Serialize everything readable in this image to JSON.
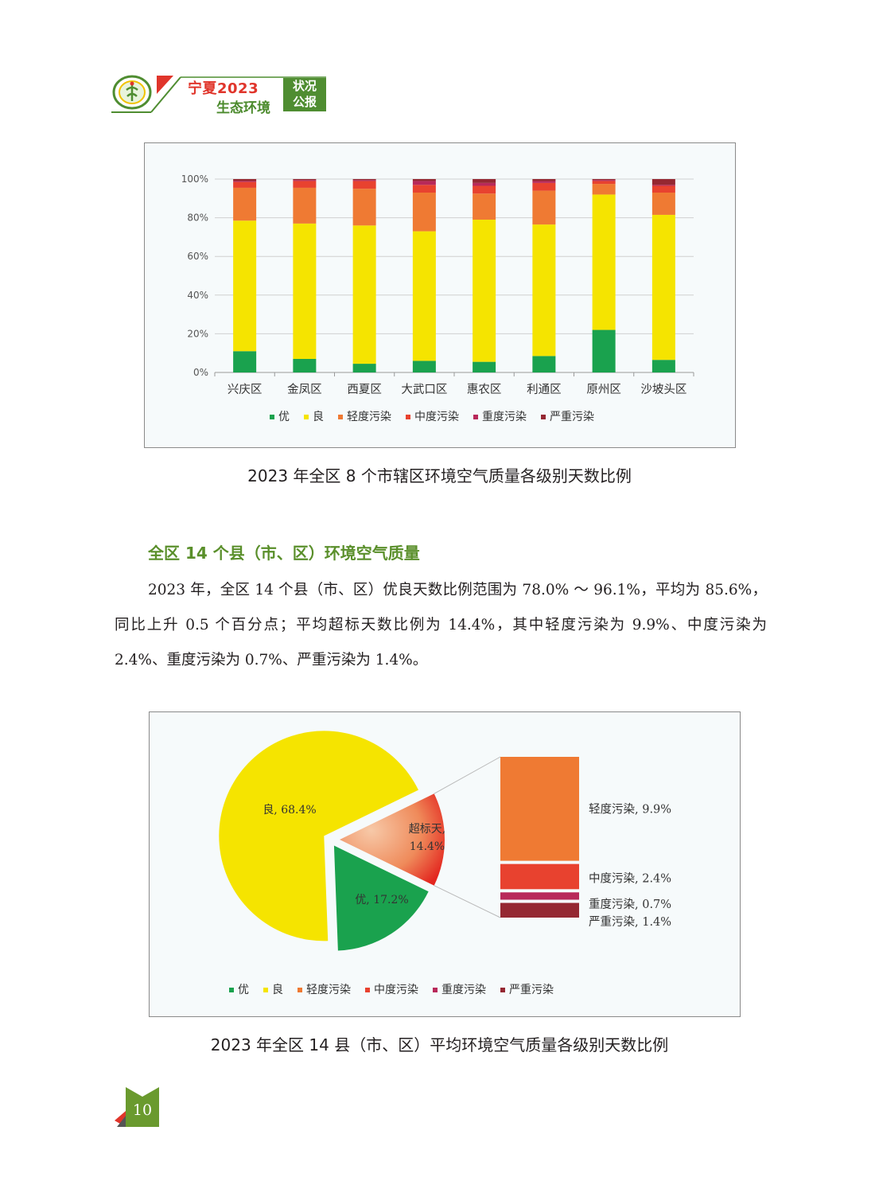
{
  "header": {
    "title_line1": "宁夏2023",
    "title_line2": "生态环境",
    "tag_line1": "状况",
    "tag_line2": "公报",
    "logo_icon": "emblem-icon"
  },
  "colors": {
    "you": "#1aa24e",
    "liang": "#f5e400",
    "light": "#ef7a33",
    "moderate": "#e8422f",
    "heavy": "#b8295a",
    "severe": "#952832",
    "accent_green": "#4f8d31",
    "accent_red": "#e0352b"
  },
  "figure1": {
    "caption": "2023 年全区 8 个市辖区环境空气质量各级别天数比例"
  },
  "figure2": {
    "caption": "2023 年全区 14 县（市、区）平均环境空气质量各级别天数比例"
  },
  "section": {
    "heading": "全区 14 个县（市、区）环境空气质量",
    "paragraph": "2023 年，全区 14 个县（市、区）优良天数比例范围为 78.0% ～ 96.1%，平均为 85.6%，同比上升 0.5 个百分点；平均超标天数比例为 14.4%，其中轻度污染为 9.9%、中度污染为 2.4%、重度污染为 0.7%、严重污染为 1.4%。"
  },
  "page_number": "10",
  "chart_data": [
    {
      "type": "bar",
      "stacked": true,
      "categories": [
        "兴庆区",
        "金凤区",
        "西夏区",
        "大武口区",
        "惠农区",
        "利通区",
        "原州区",
        "沙坡头区"
      ],
      "ylim": [
        0,
        100
      ],
      "yticks": [
        "0%",
        "20%",
        "40%",
        "60%",
        "80%",
        "100%"
      ],
      "grid": true,
      "legend_position": "bottom",
      "series": [
        {
          "name": "优",
          "values": [
            11,
            7,
            4.5,
            6,
            5.5,
            8.5,
            22,
            6.5
          ]
        },
        {
          "name": "良",
          "values": [
            67.5,
            70,
            71.5,
            67,
            73.5,
            68,
            70,
            75
          ]
        },
        {
          "name": "轻度污染",
          "values": [
            17,
            18.5,
            19,
            20,
            13.5,
            17.5,
            5.5,
            11.5
          ]
        },
        {
          "name": "中度污染",
          "values": [
            3,
            3.5,
            4,
            4,
            4,
            4,
            1.5,
            3.5
          ]
        },
        {
          "name": "重度污染",
          "values": [
            0.5,
            0.5,
            0.5,
            2,
            1.5,
            1,
            0.5,
            0.5
          ]
        },
        {
          "name": "严重污染",
          "values": [
            1,
            0.5,
            0.5,
            1,
            2,
            1,
            0.5,
            3
          ]
        }
      ]
    },
    {
      "type": "pie",
      "slices": [
        {
          "name": "良",
          "value": 68.4,
          "label": "良, 68.4%"
        },
        {
          "name": "超标天",
          "value": 14.4,
          "label": "超标天, 14.4%"
        },
        {
          "name": "优",
          "value": 17.2,
          "label": "优, 17.2%"
        }
      ],
      "breakdown": [
        {
          "name": "轻度污染",
          "value": 9.9,
          "label": "轻度污染, 9.9%"
        },
        {
          "name": "中度污染",
          "value": 2.4,
          "label": "中度污染, 2.4%"
        },
        {
          "name": "重度污染",
          "value": 0.7,
          "label": "重度污染, 0.7%"
        },
        {
          "name": "严重污染",
          "value": 1.4,
          "label": "严重污染, 1.4%"
        }
      ],
      "legend": [
        "优",
        "良",
        "轻度污染",
        "中度污染",
        "重度污染",
        "严重污染"
      ],
      "legend_position": "bottom"
    }
  ]
}
